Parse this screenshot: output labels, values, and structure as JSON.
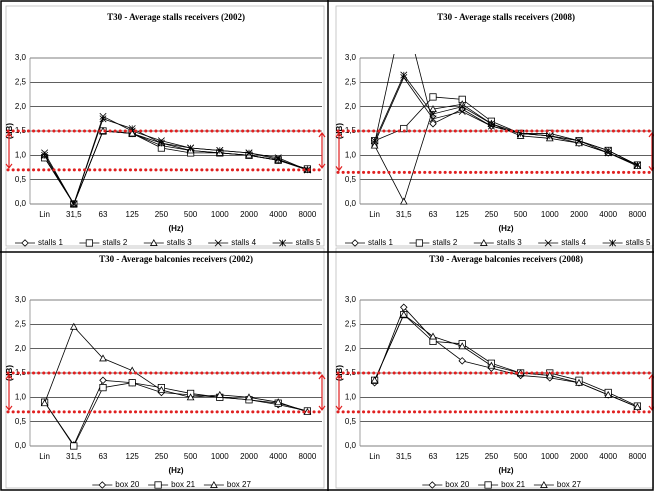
{
  "chart_data": [
    {
      "type": "line",
      "title": "T30 - Average stalls receivers (2002)",
      "ylabel": "(dB)",
      "xlabel": "(Hz)",
      "categories": [
        "Lin",
        "31,5",
        "63",
        "125",
        "250",
        "500",
        "1000",
        "2000",
        "4000",
        "8000"
      ],
      "ylim": [
        0,
        3
      ],
      "yticks": [
        {
          "value": 0,
          "label": "0,0"
        },
        {
          "value": 0.5,
          "label": "0,5"
        },
        {
          "value": 1,
          "label": "1,0"
        },
        {
          "value": 1.5,
          "label": "1,5"
        },
        {
          "value": 2,
          "label": "2,0"
        },
        {
          "value": 2.5,
          "label": "2,5"
        },
        {
          "value": 3,
          "label": "3,0"
        }
      ],
      "grid": true,
      "reference_lines": {
        "values": [
          1.5,
          0.7
        ],
        "color": "#e02020"
      },
      "series": [
        {
          "name": "stalls 1",
          "color": "#000000",
          "marker": "diamond",
          "values": [
            0.95,
            0,
            1.5,
            1.45,
            1.2,
            1.1,
            1.05,
            1.0,
            0.9,
            0.72
          ]
        },
        {
          "name": "stalls 2",
          "color": "#000000",
          "marker": "square",
          "values": [
            0.95,
            0,
            1.5,
            1.45,
            1.15,
            1.05,
            1.05,
            1.0,
            0.9,
            0.72
          ]
        },
        {
          "name": "stalls 3",
          "color": "#000000",
          "marker": "triangle",
          "values": [
            1.0,
            0,
            1.5,
            1.45,
            1.25,
            1.1,
            1.05,
            1.0,
            0.9,
            0.7
          ]
        },
        {
          "name": "stalls 4",
          "color": "#000000",
          "marker": "x",
          "values": [
            1.05,
            0,
            1.8,
            1.5,
            1.3,
            1.15,
            1.1,
            1.05,
            0.95,
            0.7
          ]
        },
        {
          "name": "stalls 5",
          "color": "#000000",
          "marker": "star",
          "values": [
            1.0,
            0,
            1.75,
            1.55,
            1.25,
            1.15,
            1.1,
            1.05,
            0.92,
            0.7
          ]
        }
      ]
    },
    {
      "type": "line",
      "title": "T30 - Average stalls receivers (2008)",
      "ylabel": "(dB)",
      "xlabel": "(Hz)",
      "categories": [
        "Lin",
        "31,5",
        "63",
        "125",
        "250",
        "500",
        "1000",
        "2000",
        "4000",
        "8000"
      ],
      "ylim": [
        0,
        3
      ],
      "yticks": [
        {
          "value": 0,
          "label": "0,0"
        },
        {
          "value": 0.5,
          "label": "0,5"
        },
        {
          "value": 1,
          "label": "1,0"
        },
        {
          "value": 1.5,
          "label": "1,5"
        },
        {
          "value": 2,
          "label": "2,0"
        },
        {
          "value": 2.5,
          "label": "2,5"
        },
        {
          "value": 3,
          "label": "3,0"
        }
      ],
      "grid": true,
      "reference_lines": {
        "values": [
          1.5,
          0.65
        ],
        "color": "#e02020"
      },
      "series": [
        {
          "name": "stalls 1",
          "color": "#000000",
          "marker": "diamond",
          "values": [
            1.25,
            4.0,
            1.65,
            1.95,
            1.6,
            1.45,
            1.4,
            1.25,
            1.05,
            0.8
          ]
        },
        {
          "name": "stalls 2",
          "color": "#000000",
          "marker": "square",
          "values": [
            1.3,
            1.55,
            2.2,
            2.15,
            1.7,
            1.45,
            1.45,
            1.3,
            1.1,
            0.8
          ]
        },
        {
          "name": "stalls 3",
          "color": "#000000",
          "marker": "triangle",
          "values": [
            1.2,
            0.05,
            1.95,
            2.05,
            1.65,
            1.4,
            1.35,
            1.25,
            1.05,
            0.78
          ]
        },
        {
          "name": "stalls 4",
          "color": "#000000",
          "marker": "x",
          "values": [
            1.25,
            2.6,
            1.75,
            1.9,
            1.6,
            1.45,
            1.4,
            1.3,
            1.05,
            0.8
          ]
        },
        {
          "name": "stalls 5",
          "color": "#000000",
          "marker": "star",
          "values": [
            1.3,
            2.65,
            1.85,
            2.0,
            1.65,
            1.45,
            1.4,
            1.3,
            1.1,
            0.8
          ]
        }
      ]
    },
    {
      "type": "line",
      "title": "T30 - Average balconies receivers (2002)",
      "ylabel": "(dB)",
      "xlabel": "(Hz)",
      "categories": [
        "Lin",
        "31,5",
        "63",
        "125",
        "250",
        "500",
        "1000",
        "2000",
        "4000",
        "8000"
      ],
      "ylim": [
        0,
        3
      ],
      "yticks": [
        {
          "value": 0,
          "label": "0,0"
        },
        {
          "value": 0.5,
          "label": "0,5"
        },
        {
          "value": 1,
          "label": "1,0"
        },
        {
          "value": 1.5,
          "label": "1,5"
        },
        {
          "value": 2,
          "label": "2,0"
        },
        {
          "value": 2.5,
          "label": "2,5"
        },
        {
          "value": 3,
          "label": "3,0"
        }
      ],
      "grid": true,
      "reference_lines": {
        "values": [
          1.5,
          0.7
        ],
        "color": "#e02020"
      },
      "series": [
        {
          "name": "box 20",
          "color": "#000000",
          "marker": "diamond",
          "values": [
            0.9,
            0.02,
            1.35,
            1.3,
            1.1,
            1.05,
            1.0,
            0.95,
            0.85,
            0.72
          ]
        },
        {
          "name": "box 21",
          "color": "#000000",
          "marker": "square",
          "values": [
            0.9,
            0,
            1.2,
            1.3,
            1.2,
            1.08,
            1.0,
            0.95,
            0.88,
            0.72
          ]
        },
        {
          "name": "box 27",
          "color": "#000000",
          "marker": "triangle",
          "values": [
            0.88,
            2.45,
            1.8,
            1.55,
            1.15,
            1.0,
            1.05,
            1.0,
            0.9,
            0.7
          ]
        }
      ]
    },
    {
      "type": "line",
      "title": "T30 - Average balconies receivers (2008)",
      "ylabel": "(dB)",
      "xlabel": "(Hz)",
      "categories": [
        "Lin",
        "31,5",
        "63",
        "125",
        "250",
        "500",
        "1000",
        "2000",
        "4000",
        "8000"
      ],
      "ylim": [
        0,
        3
      ],
      "yticks": [
        {
          "value": 0,
          "label": "0,0"
        },
        {
          "value": 0.5,
          "label": "0,5"
        },
        {
          "value": 1,
          "label": "1,0"
        },
        {
          "value": 1.5,
          "label": "1,5"
        },
        {
          "value": 2,
          "label": "2,0"
        },
        {
          "value": 2.5,
          "label": "2,5"
        },
        {
          "value": 3,
          "label": "3,0"
        }
      ],
      "grid": true,
      "reference_lines": {
        "values": [
          1.5,
          0.7
        ],
        "color": "#e02020"
      },
      "series": [
        {
          "name": "box 20",
          "color": "#000000",
          "marker": "diamond",
          "values": [
            1.3,
            2.85,
            2.2,
            1.75,
            1.6,
            1.45,
            1.4,
            1.3,
            1.05,
            0.8
          ]
        },
        {
          "name": "box 21",
          "color": "#000000",
          "marker": "square",
          "values": [
            1.35,
            2.7,
            2.15,
            2.1,
            1.7,
            1.5,
            1.5,
            1.35,
            1.1,
            0.82
          ]
        },
        {
          "name": "box 27",
          "color": "#000000",
          "marker": "triangle",
          "values": [
            1.35,
            2.7,
            2.25,
            2.05,
            1.65,
            1.5,
            1.45,
            1.3,
            1.05,
            0.8
          ]
        }
      ]
    }
  ]
}
